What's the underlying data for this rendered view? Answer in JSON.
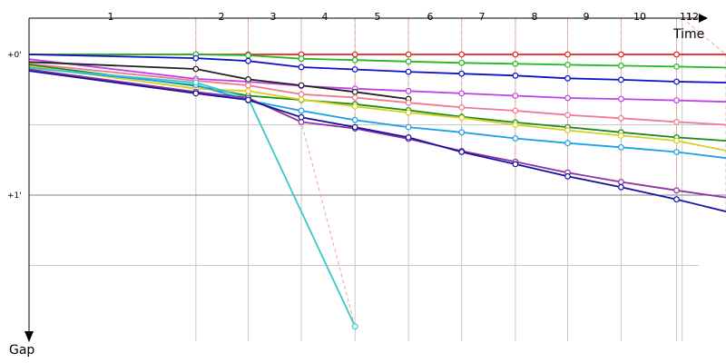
{
  "chart_data": {
    "type": "line",
    "x_axis_label": "Time",
    "y_axis_label": "Gap",
    "x_ticks": [
      "1",
      "2",
      "3",
      "4",
      "5",
      "6",
      "7",
      "8",
      "9",
      "10",
      "11",
      "12"
    ],
    "x_tick_positions_s": [
      0,
      59,
      77.5,
      96.3,
      115.3,
      134.2,
      153,
      172,
      190.5,
      209.4,
      229,
      231
    ],
    "y_ticks": [
      "+0'",
      "+1'"
    ],
    "y_tick_values_s": [
      0,
      60
    ],
    "ylim_s": [
      -2,
      120
    ],
    "xlim_s": [
      0,
      246.5
    ],
    "grid": true,
    "series": [
      {
        "color": "#e8231e",
        "points": [
          [
            0,
            0
          ],
          [
            59,
            0
          ],
          [
            77.5,
            0
          ],
          [
            96.3,
            0
          ],
          [
            115.3,
            0
          ],
          [
            134.2,
            0
          ],
          [
            153,
            0
          ],
          [
            172,
            0
          ],
          [
            190.5,
            0
          ],
          [
            209.4,
            0
          ],
          [
            229,
            0
          ],
          [
            246.5,
            0
          ]
        ]
      },
      {
        "color": "#22b822",
        "points": [
          [
            0,
            0
          ],
          [
            59,
            0
          ],
          [
            77.5,
            0.4
          ],
          [
            96.3,
            1.8
          ],
          [
            115.3,
            2.4
          ],
          [
            134.2,
            3.0
          ],
          [
            153,
            3.6
          ],
          [
            172,
            4.0
          ],
          [
            190.5,
            4.4
          ],
          [
            209.4,
            4.8
          ],
          [
            229,
            5.2
          ],
          [
            246.5,
            5.6
          ]
        ]
      },
      {
        "color": "#1010c8",
        "points": [
          [
            0,
            0
          ],
          [
            59,
            1.6
          ],
          [
            77.5,
            2.8
          ],
          [
            96.3,
            5.4
          ],
          [
            115.3,
            6.4
          ],
          [
            134.2,
            7.4
          ],
          [
            153,
            8.2
          ],
          [
            172,
            9.0
          ],
          [
            190.5,
            10.2
          ],
          [
            209.4,
            10.8
          ],
          [
            229,
            11.6
          ],
          [
            246.5,
            12.0
          ]
        ]
      },
      {
        "color": "#c040e8",
        "points": [
          [
            0,
            2.0
          ],
          [
            59,
            10.4
          ],
          [
            77.5,
            11.6
          ],
          [
            96.3,
            13.4
          ],
          [
            115.3,
            14.6
          ],
          [
            134.2,
            15.6
          ],
          [
            153,
            16.6
          ],
          [
            172,
            17.6
          ],
          [
            190.5,
            18.6
          ],
          [
            209.4,
            19.0
          ],
          [
            229,
            19.6
          ],
          [
            246.5,
            20.2
          ]
        ]
      },
      {
        "color": "#202020",
        "points": [
          [
            0,
            3.2
          ],
          [
            59,
            6.2
          ],
          [
            77.5,
            10.6
          ],
          [
            96.3,
            13.2
          ],
          [
            115.3,
            16.0
          ],
          [
            134.2,
            19.0
          ]
        ]
      },
      {
        "color": "#f07890",
        "points": [
          [
            0,
            4.0
          ],
          [
            59,
            11.2
          ],
          [
            77.5,
            13.2
          ],
          [
            96.3,
            17.0
          ],
          [
            115.3,
            18.4
          ],
          [
            134.2,
            20.6
          ],
          [
            153,
            22.6
          ],
          [
            172,
            24.0
          ],
          [
            190.5,
            25.8
          ],
          [
            209.4,
            27.2
          ],
          [
            229,
            28.8
          ],
          [
            246.5,
            30.0
          ]
        ]
      },
      {
        "color": "#1a8a1a",
        "points": [
          [
            0,
            4.4
          ],
          [
            59,
            13.4
          ],
          [
            77.5,
            17.6
          ],
          [
            96.3,
            19.4
          ],
          [
            115.3,
            21.2
          ],
          [
            134.2,
            23.8
          ],
          [
            153,
            26.6
          ],
          [
            172,
            29.0
          ],
          [
            190.5,
            31.0
          ],
          [
            209.4,
            33.2
          ],
          [
            229,
            35.4
          ],
          [
            246.5,
            36.8
          ]
        ]
      },
      {
        "color": "#d8d020",
        "points": [
          [
            0,
            5.0
          ],
          [
            59,
            14.6
          ],
          [
            77.5,
            15.6
          ],
          [
            96.3,
            19.2
          ],
          [
            115.3,
            22.2
          ],
          [
            134.2,
            24.8
          ],
          [
            153,
            27.0
          ],
          [
            172,
            30.0
          ],
          [
            190.5,
            32.4
          ],
          [
            209.4,
            34.6
          ],
          [
            229,
            36.8
          ],
          [
            246.5,
            41.0
          ]
        ]
      },
      {
        "color": "#1aa0e8",
        "points": [
          [
            0,
            5.6
          ],
          [
            59,
            13.0
          ],
          [
            77.5,
            19.6
          ],
          [
            96.3,
            24.0
          ],
          [
            115.3,
            28.0
          ],
          [
            134.2,
            31.0
          ],
          [
            153,
            33.2
          ],
          [
            172,
            35.8
          ],
          [
            190.5,
            37.8
          ],
          [
            209.4,
            39.6
          ],
          [
            229,
            41.6
          ],
          [
            246.5,
            44.2
          ]
        ]
      },
      {
        "color": "#38c8c8",
        "points": [
          [
            0,
            5.8
          ],
          [
            59,
            12.0
          ],
          [
            77.5,
            18.6
          ],
          [
            115.3,
            116.0
          ]
        ]
      },
      {
        "color": "#9030a0",
        "points": [
          [
            0,
            6.4
          ],
          [
            59,
            16.0
          ],
          [
            77.5,
            18.6
          ],
          [
            96.3,
            28.8
          ],
          [
            115.3,
            31.6
          ],
          [
            134.2,
            36.0
          ],
          [
            153,
            41.2
          ],
          [
            172,
            45.8
          ],
          [
            190.5,
            50.4
          ],
          [
            209.4,
            54.4
          ],
          [
            229,
            58.0
          ],
          [
            246.5,
            61.0
          ]
        ]
      },
      {
        "color": "#1414a0",
        "points": [
          [
            0,
            7.0
          ],
          [
            59,
            16.6
          ],
          [
            77.5,
            19.4
          ],
          [
            96.3,
            26.8
          ],
          [
            115.3,
            31.0
          ],
          [
            134.2,
            35.4
          ],
          [
            153,
            41.6
          ],
          [
            172,
            46.8
          ],
          [
            190.5,
            52.0
          ],
          [
            209.4,
            56.6
          ],
          [
            229,
            61.8
          ],
          [
            246.5,
            67.0
          ]
        ]
      }
    ]
  },
  "lap_markers_color": "#f4a0a0",
  "grid_color": "#c8c8c8"
}
